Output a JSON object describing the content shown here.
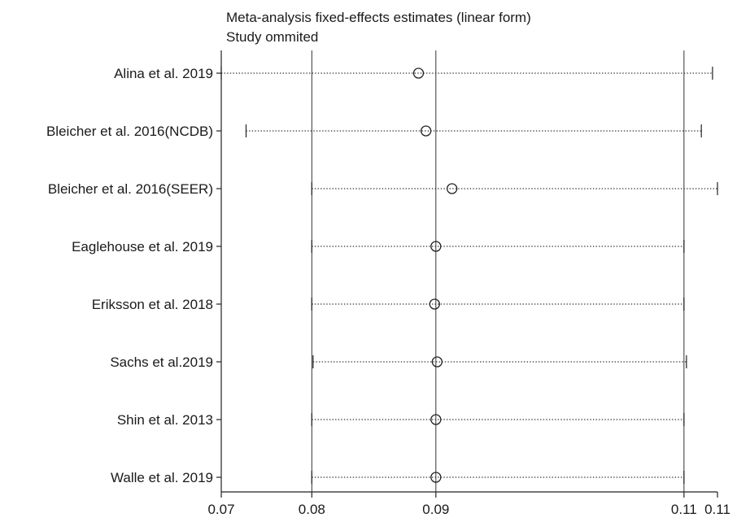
{
  "chart_data": {
    "type": "forest",
    "title": "Meta-analysis fixed-effects estimates (linear form)",
    "subtitle": "Study ommited",
    "studies": [
      {
        "label": "Alina et al. 2019",
        "estimate": 0.0886,
        "lower": 0.0727,
        "upper": 0.1123
      },
      {
        "label": "Bleicher et al. 2016(NCDB)",
        "estimate": 0.0892,
        "lower": 0.0747,
        "upper": 0.1114
      },
      {
        "label": "Bleicher et al. 2016(SEER)",
        "estimate": 0.0913,
        "lower": 0.08,
        "upper": 0.1127
      },
      {
        "label": "Eaglehouse et al. 2019",
        "estimate": 0.09,
        "lower": 0.08,
        "upper": 0.11
      },
      {
        "label": "Eriksson et al. 2018",
        "estimate": 0.0899,
        "lower": 0.08,
        "upper": 0.11
      },
      {
        "label": "Sachs et al.2019",
        "estimate": 0.0901,
        "lower": 0.0801,
        "upper": 0.1102
      },
      {
        "label": "Shin et al. 2013",
        "estimate": 0.09,
        "lower": 0.08,
        "upper": 0.11
      },
      {
        "label": "Walle et al. 2019",
        "estimate": 0.09,
        "lower": 0.08,
        "upper": 0.11
      }
    ],
    "xlim": [
      0.0727,
      0.1127
    ],
    "ticks": [
      {
        "value": 0.0727,
        "label": "0.07"
      },
      {
        "value": 0.08,
        "label": "0.08"
      },
      {
        "value": 0.09,
        "label": "0.09"
      },
      {
        "value": 0.11,
        "label": "0.11"
      },
      {
        "value": 0.1127,
        "label": "0.11"
      }
    ],
    "reference_lines": [
      0.08,
      0.09,
      0.11
    ]
  }
}
